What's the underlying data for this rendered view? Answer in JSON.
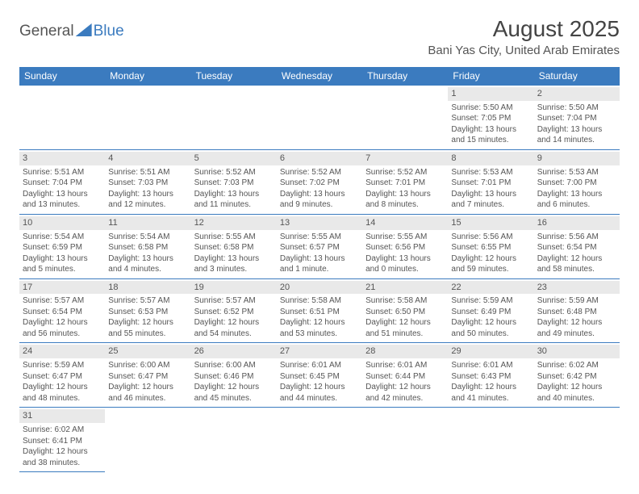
{
  "logo": {
    "general": "General",
    "blue": "Blue"
  },
  "title": "August 2025",
  "location": "Bani Yas City, United Arab Emirates",
  "weekdays": [
    "Sunday",
    "Monday",
    "Tuesday",
    "Wednesday",
    "Thursday",
    "Friday",
    "Saturday"
  ],
  "colors": {
    "header_bg": "#3b7bbf",
    "header_fg": "#ffffff",
    "daynum_bg": "#e9e9e9",
    "text": "#555555"
  },
  "cells": [
    [
      null,
      null,
      null,
      null,
      null,
      {
        "n": "1",
        "r": "Sunrise: 5:50 AM",
        "s": "Sunset: 7:05 PM",
        "d1": "Daylight: 13 hours",
        "d2": "and 15 minutes."
      },
      {
        "n": "2",
        "r": "Sunrise: 5:50 AM",
        "s": "Sunset: 7:04 PM",
        "d1": "Daylight: 13 hours",
        "d2": "and 14 minutes."
      }
    ],
    [
      {
        "n": "3",
        "r": "Sunrise: 5:51 AM",
        "s": "Sunset: 7:04 PM",
        "d1": "Daylight: 13 hours",
        "d2": "and 13 minutes."
      },
      {
        "n": "4",
        "r": "Sunrise: 5:51 AM",
        "s": "Sunset: 7:03 PM",
        "d1": "Daylight: 13 hours",
        "d2": "and 12 minutes."
      },
      {
        "n": "5",
        "r": "Sunrise: 5:52 AM",
        "s": "Sunset: 7:03 PM",
        "d1": "Daylight: 13 hours",
        "d2": "and 11 minutes."
      },
      {
        "n": "6",
        "r": "Sunrise: 5:52 AM",
        "s": "Sunset: 7:02 PM",
        "d1": "Daylight: 13 hours",
        "d2": "and 9 minutes."
      },
      {
        "n": "7",
        "r": "Sunrise: 5:52 AM",
        "s": "Sunset: 7:01 PM",
        "d1": "Daylight: 13 hours",
        "d2": "and 8 minutes."
      },
      {
        "n": "8",
        "r": "Sunrise: 5:53 AM",
        "s": "Sunset: 7:01 PM",
        "d1": "Daylight: 13 hours",
        "d2": "and 7 minutes."
      },
      {
        "n": "9",
        "r": "Sunrise: 5:53 AM",
        "s": "Sunset: 7:00 PM",
        "d1": "Daylight: 13 hours",
        "d2": "and 6 minutes."
      }
    ],
    [
      {
        "n": "10",
        "r": "Sunrise: 5:54 AM",
        "s": "Sunset: 6:59 PM",
        "d1": "Daylight: 13 hours",
        "d2": "and 5 minutes."
      },
      {
        "n": "11",
        "r": "Sunrise: 5:54 AM",
        "s": "Sunset: 6:58 PM",
        "d1": "Daylight: 13 hours",
        "d2": "and 4 minutes."
      },
      {
        "n": "12",
        "r": "Sunrise: 5:55 AM",
        "s": "Sunset: 6:58 PM",
        "d1": "Daylight: 13 hours",
        "d2": "and 3 minutes."
      },
      {
        "n": "13",
        "r": "Sunrise: 5:55 AM",
        "s": "Sunset: 6:57 PM",
        "d1": "Daylight: 13 hours",
        "d2": "and 1 minute."
      },
      {
        "n": "14",
        "r": "Sunrise: 5:55 AM",
        "s": "Sunset: 6:56 PM",
        "d1": "Daylight: 13 hours",
        "d2": "and 0 minutes."
      },
      {
        "n": "15",
        "r": "Sunrise: 5:56 AM",
        "s": "Sunset: 6:55 PM",
        "d1": "Daylight: 12 hours",
        "d2": "and 59 minutes."
      },
      {
        "n": "16",
        "r": "Sunrise: 5:56 AM",
        "s": "Sunset: 6:54 PM",
        "d1": "Daylight: 12 hours",
        "d2": "and 58 minutes."
      }
    ],
    [
      {
        "n": "17",
        "r": "Sunrise: 5:57 AM",
        "s": "Sunset: 6:54 PM",
        "d1": "Daylight: 12 hours",
        "d2": "and 56 minutes."
      },
      {
        "n": "18",
        "r": "Sunrise: 5:57 AM",
        "s": "Sunset: 6:53 PM",
        "d1": "Daylight: 12 hours",
        "d2": "and 55 minutes."
      },
      {
        "n": "19",
        "r": "Sunrise: 5:57 AM",
        "s": "Sunset: 6:52 PM",
        "d1": "Daylight: 12 hours",
        "d2": "and 54 minutes."
      },
      {
        "n": "20",
        "r": "Sunrise: 5:58 AM",
        "s": "Sunset: 6:51 PM",
        "d1": "Daylight: 12 hours",
        "d2": "and 53 minutes."
      },
      {
        "n": "21",
        "r": "Sunrise: 5:58 AM",
        "s": "Sunset: 6:50 PM",
        "d1": "Daylight: 12 hours",
        "d2": "and 51 minutes."
      },
      {
        "n": "22",
        "r": "Sunrise: 5:59 AM",
        "s": "Sunset: 6:49 PM",
        "d1": "Daylight: 12 hours",
        "d2": "and 50 minutes."
      },
      {
        "n": "23",
        "r": "Sunrise: 5:59 AM",
        "s": "Sunset: 6:48 PM",
        "d1": "Daylight: 12 hours",
        "d2": "and 49 minutes."
      }
    ],
    [
      {
        "n": "24",
        "r": "Sunrise: 5:59 AM",
        "s": "Sunset: 6:47 PM",
        "d1": "Daylight: 12 hours",
        "d2": "and 48 minutes."
      },
      {
        "n": "25",
        "r": "Sunrise: 6:00 AM",
        "s": "Sunset: 6:47 PM",
        "d1": "Daylight: 12 hours",
        "d2": "and 46 minutes."
      },
      {
        "n": "26",
        "r": "Sunrise: 6:00 AM",
        "s": "Sunset: 6:46 PM",
        "d1": "Daylight: 12 hours",
        "d2": "and 45 minutes."
      },
      {
        "n": "27",
        "r": "Sunrise: 6:01 AM",
        "s": "Sunset: 6:45 PM",
        "d1": "Daylight: 12 hours",
        "d2": "and 44 minutes."
      },
      {
        "n": "28",
        "r": "Sunrise: 6:01 AM",
        "s": "Sunset: 6:44 PM",
        "d1": "Daylight: 12 hours",
        "d2": "and 42 minutes."
      },
      {
        "n": "29",
        "r": "Sunrise: 6:01 AM",
        "s": "Sunset: 6:43 PM",
        "d1": "Daylight: 12 hours",
        "d2": "and 41 minutes."
      },
      {
        "n": "30",
        "r": "Sunrise: 6:02 AM",
        "s": "Sunset: 6:42 PM",
        "d1": "Daylight: 12 hours",
        "d2": "and 40 minutes."
      }
    ],
    [
      {
        "n": "31",
        "r": "Sunrise: 6:02 AM",
        "s": "Sunset: 6:41 PM",
        "d1": "Daylight: 12 hours",
        "d2": "and 38 minutes."
      },
      null,
      null,
      null,
      null,
      null,
      null
    ]
  ]
}
